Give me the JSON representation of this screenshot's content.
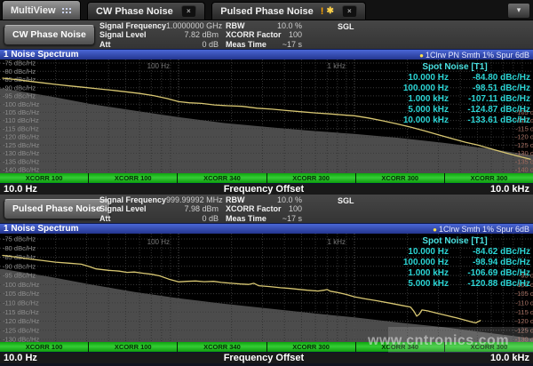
{
  "tabs": [
    {
      "label": "MultiView",
      "icon": "grid-icon"
    },
    {
      "label": "CW Phase Noise",
      "close_glyph": "×"
    },
    {
      "label": "Pulsed Phase Noise",
      "alert": "!",
      "star": "✱",
      "close_glyph": "×"
    }
  ],
  "overflow_button_glyph": "▾",
  "watermark": {
    "text": "www.cntronics.com"
  },
  "colors": {
    "accent_blue": "#2f4fae",
    "trace_yellow": "#d8c772",
    "spot_teal": "#2bd4d4",
    "xcorr_green": "#17b117",
    "gray_area": "#4c4c4c",
    "right_axis_red": "#a06b5e"
  },
  "channels": [
    {
      "header": {
        "button_label": "CW Phase Noise",
        "fields1": [
          {
            "label": "Signal Frequency",
            "value": "1.0000000 GHz"
          },
          {
            "label": "Signal Level",
            "value": "7.82 dBm"
          },
          {
            "label": "Att",
            "value": "0 dB"
          }
        ],
        "fields2": [
          {
            "label": "RBW",
            "value": "10.0 %"
          },
          {
            "label": "XCORR Factor",
            "value": "100"
          },
          {
            "label": "Meas Time",
            "value": "~17 s"
          }
        ],
        "sgl": "SGL"
      },
      "titlebar": {
        "title": "1 Noise Spectrum",
        "dot": "●",
        "trace_info": "1Clrw PN Smth 1% Spur 6dB"
      },
      "spot_noise": {
        "title": "Spot Noise [T1]",
        "rows": [
          {
            "freq": "10.000 Hz",
            "value": "-84.80 dBc/Hz"
          },
          {
            "freq": "100.000 Hz",
            "value": "-98.51 dBc/Hz"
          },
          {
            "freq": "1.000 kHz",
            "value": "-107.11 dBc/Hz"
          },
          {
            "freq": "5.000 kHz",
            "value": "-124.87 dBc/Hz"
          },
          {
            "freq": "10.000 kHz",
            "value": "-133.61 dBc/Hz"
          }
        ]
      },
      "xcorr_segments": [
        "XCORR 100",
        "XCORR 100",
        "XCORR 340",
        "XCORR 300",
        "XCORR 300",
        "XCORR 300"
      ],
      "freq_axis": {
        "left": "10.0 Hz",
        "center": "Frequency Offset",
        "right": "10.0 kHz"
      }
    },
    {
      "header": {
        "button_label": "Pulsed Phase Noise",
        "fields1": [
          {
            "label": "Signal Frequency",
            "value": "999.99992 MHz"
          },
          {
            "label": "Signal Level",
            "value": "7.98 dBm"
          },
          {
            "label": "Att",
            "value": "0 dB"
          }
        ],
        "fields2": [
          {
            "label": "RBW",
            "value": "10.0 %"
          },
          {
            "label": "XCORR Factor",
            "value": "100"
          },
          {
            "label": "Meas Time",
            "value": "~17 s"
          }
        ],
        "sgl": "SGL"
      },
      "titlebar": {
        "title": "1 Noise Spectrum",
        "dot": "●",
        "trace_info": "1Clrw Smth 1% Spur 6dB"
      },
      "spot_noise": {
        "title": "Spot Noise [T1]",
        "rows": [
          {
            "freq": "10.000 Hz",
            "value": "-84.62 dBc/Hz"
          },
          {
            "freq": "100.000 Hz",
            "value": "-98.94 dBc/Hz"
          },
          {
            "freq": "1.000 kHz",
            "value": "-106.69 dBc/Hz"
          },
          {
            "freq": "5.000 kHz",
            "value": "-120.88 dBc/Hz"
          }
        ]
      },
      "xcorr_segments": [
        "XCORR 100",
        "XCORR 100",
        "XCORR 340",
        "XCORR 300",
        "XCORR 340",
        "XCORR 300"
      ],
      "freq_axis": {
        "left": "10.0 Hz",
        "center": "Frequency Offset",
        "right": "10.0 kHz"
      }
    }
  ],
  "chart_data": [
    {
      "type": "line",
      "title": "1 Noise Spectrum (CW Phase Noise)",
      "xlabel": "Frequency Offset",
      "ylabel": "dBc/Hz",
      "xscale": "log",
      "xlim": [
        10,
        10000
      ],
      "ylim": [
        -140,
        -75
      ],
      "ytick_step": 5,
      "grid": true,
      "height": 128,
      "pad_top": 4,
      "pad_bottom": 4,
      "right_labels_from": -105,
      "decade_labels": [
        {
          "freq": 100,
          "label": "100 Hz"
        },
        {
          "freq": 1000,
          "label": "1 kHz"
        }
      ],
      "series": [
        {
          "name": "Trace1 Clrw PN Smth",
          "color": "#d8c772",
          "points": [
            [
              10,
              -84.2
            ],
            [
              12,
              -85.1
            ],
            [
              14,
              -86.0
            ],
            [
              17,
              -87.1
            ],
            [
              20,
              -88.0
            ],
            [
              24,
              -88.9
            ],
            [
              29,
              -89.8
            ],
            [
              35,
              -90.7
            ],
            [
              42,
              -91.6
            ],
            [
              50,
              -92.5
            ],
            [
              60,
              -93.5
            ],
            [
              72,
              -94.8
            ],
            [
              86,
              -96.6
            ],
            [
              100,
              -98.5
            ],
            [
              115,
              -99.2
            ],
            [
              135,
              -99.6
            ],
            [
              160,
              -100.5
            ],
            [
              190,
              -101.0
            ],
            [
              230,
              -101.4
            ],
            [
              280,
              -102.5
            ],
            [
              340,
              -103.1
            ],
            [
              410,
              -103.9
            ],
            [
              500,
              -104.7
            ],
            [
              600,
              -105.4
            ],
            [
              720,
              -106.0
            ],
            [
              850,
              -106.6
            ],
            [
              1000,
              -107.1
            ],
            [
              1200,
              -108.5
            ],
            [
              1450,
              -110.2
            ],
            [
              1750,
              -112.1
            ],
            [
              2100,
              -114.1
            ],
            [
              2500,
              -116.3
            ],
            [
              3000,
              -118.7
            ],
            [
              3600,
              -121.1
            ],
            [
              4300,
              -123.3
            ],
            [
              5000,
              -124.9
            ],
            [
              6000,
              -127.3
            ],
            [
              7200,
              -129.7
            ],
            [
              8500,
              -131.7
            ],
            [
              10000,
              -133.6
            ]
          ]
        }
      ],
      "gray_area": {
        "color": "#4c4c4c",
        "boundary": [
          [
            10,
            -90.5
          ],
          [
            18,
            -95.0
          ],
          [
            32,
            -100.0
          ],
          [
            56,
            -104.0
          ],
          [
            100,
            -108.0
          ],
          [
            180,
            -111.5
          ],
          [
            320,
            -114.0
          ],
          [
            560,
            -116.2
          ],
          [
            1000,
            -118.2
          ],
          [
            1800,
            -120.6
          ],
          [
            3200,
            -123.6
          ],
          [
            5600,
            -127.0
          ],
          [
            10000,
            -131.0
          ]
        ]
      },
      "spot_noise": [
        [
          10,
          -84.8
        ],
        [
          100,
          -98.51
        ],
        [
          1000,
          -107.11
        ],
        [
          5000,
          -124.87
        ],
        [
          10000,
          -133.61
        ]
      ]
    },
    {
      "type": "line",
      "title": "1 Noise Spectrum (Pulsed Phase Noise)",
      "xlabel": "Frequency Offset",
      "ylabel": "dBc/Hz",
      "xscale": "log",
      "xlim": [
        10,
        10000
      ],
      "ylim": [
        -130,
        -75
      ],
      "ytick_step": 5,
      "grid": true,
      "height": 122,
      "pad_top": 6,
      "pad_bottom": 3,
      "right_labels_from": -95,
      "decade_labels": [
        {
          "freq": 100,
          "label": "100 Hz"
        },
        {
          "freq": 1000,
          "label": "1 kHz"
        }
      ],
      "series": [
        {
          "name": "Trace1 Clrw Smth",
          "color": "#d8c772",
          "points": [
            [
              10,
              -84.0
            ],
            [
              12,
              -85.0
            ],
            [
              14,
              -85.9
            ],
            [
              17,
              -86.9
            ],
            [
              20,
              -87.7
            ],
            [
              24,
              -88.3
            ],
            [
              28,
              -88.8
            ],
            [
              31,
              -90.1
            ],
            [
              34,
              -91.4
            ],
            [
              40,
              -92.2
            ],
            [
              46,
              -92.6
            ],
            [
              51,
              -93.3
            ],
            [
              56,
              -93.1
            ],
            [
              63,
              -93.8
            ],
            [
              70,
              -94.3
            ],
            [
              78,
              -95.2
            ],
            [
              88,
              -97.0
            ],
            [
              100,
              -98.5
            ],
            [
              112,
              -98.2
            ],
            [
              125,
              -98.0
            ],
            [
              140,
              -98.4
            ],
            [
              158,
              -98.2
            ],
            [
              175,
              -98.8
            ],
            [
              200,
              -99.3
            ],
            [
              225,
              -99.7
            ],
            [
              250,
              -99.9
            ],
            [
              268,
              -99.3
            ],
            [
              285,
              -100.6
            ],
            [
              330,
              -101.1
            ],
            [
              380,
              -101.7
            ],
            [
              430,
              -102.1
            ],
            [
              480,
              -102.6
            ],
            [
              540,
              -103.1
            ],
            [
              620,
              -103.5
            ],
            [
              670,
              -103.1
            ],
            [
              700,
              -102.7
            ],
            [
              730,
              -103.6
            ],
            [
              800,
              -104.3
            ],
            [
              900,
              -105.4
            ],
            [
              1000,
              -106.7
            ],
            [
              1150,
              -107.8
            ],
            [
              1350,
              -108.9
            ],
            [
              1600,
              -110.2
            ],
            [
              1900,
              -111.6
            ],
            [
              2080,
              -112.3
            ],
            [
              2180,
              -114.6
            ],
            [
              2260,
              -117.3
            ],
            [
              2340,
              -116.2
            ],
            [
              2420,
              -113.9
            ],
            [
              2600,
              -114.4
            ],
            [
              2900,
              -115.5
            ],
            [
              3300,
              -116.8
            ],
            [
              3800,
              -118.2
            ],
            [
              4300,
              -119.6
            ],
            [
              4700,
              -120.6
            ],
            [
              4900,
              -121.0
            ],
            [
              5050,
              -120.3
            ],
            [
              5200,
              -119.7
            ]
          ]
        }
      ],
      "gray_area": {
        "color": "#4c4c4c",
        "boundary": [
          [
            10,
            -91.5
          ],
          [
            18,
            -95.5
          ],
          [
            32,
            -100.0
          ],
          [
            56,
            -104.0
          ],
          [
            100,
            -107.5
          ],
          [
            180,
            -110.5
          ],
          [
            320,
            -113.0
          ],
          [
            560,
            -115.5
          ],
          [
            1000,
            -118.0
          ],
          [
            1800,
            -120.8
          ],
          [
            3200,
            -123.3
          ],
          [
            5600,
            -126.3
          ],
          [
            10000,
            -129.3
          ]
        ]
      },
      "spot_noise": [
        [
          10,
          -84.62
        ],
        [
          100,
          -98.94
        ],
        [
          1000,
          -106.69
        ],
        [
          5000,
          -120.88
        ]
      ]
    }
  ]
}
